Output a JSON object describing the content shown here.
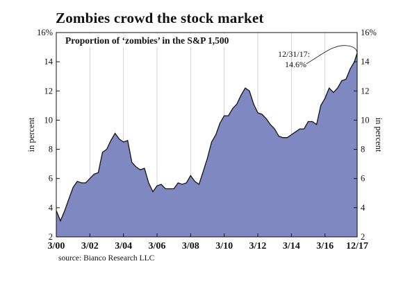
{
  "chart_data": {
    "type": "area",
    "title": "Zombies crowd the stock market",
    "subtitle": "Proportion of ‘zombies’ in the S&P 1,500",
    "ylabel": "in percent",
    "ylabel_right": "in percent",
    "ylim": [
      2,
      16
    ],
    "yticks": [
      "2",
      "4",
      "6",
      "8",
      "10",
      "12",
      "14",
      "16%"
    ],
    "xlim": [
      2000.0,
      2017.917
    ],
    "xticks": [
      {
        "value": 2000.0,
        "label": "3/00"
      },
      {
        "value": 2002.0,
        "label": "3/02"
      },
      {
        "value": 2004.0,
        "label": "3/04"
      },
      {
        "value": 2006.0,
        "label": "3/06"
      },
      {
        "value": 2008.0,
        "label": "3/08"
      },
      {
        "value": 2010.0,
        "label": "3/10"
      },
      {
        "value": 2012.0,
        "label": "3/12"
      },
      {
        "value": 2014.0,
        "label": "3/14"
      },
      {
        "value": 2016.0,
        "label": "3/16"
      },
      {
        "value": 2017.917,
        "label": "12/17"
      }
    ],
    "grid": "vertical",
    "fill_color": "#8088c2",
    "line_color": "#111111",
    "series": [
      {
        "x": [
          2000.0,
          2000.25,
          2000.5,
          2000.75,
          2001.0,
          2001.25,
          2001.5,
          2001.75,
          2002.0,
          2002.25,
          2002.5,
          2002.75,
          2003.0,
          2003.25,
          2003.5,
          2003.75,
          2004.0,
          2004.25,
          2004.5,
          2004.75,
          2005.0,
          2005.25,
          2005.5,
          2005.75,
          2006.0,
          2006.25,
          2006.5,
          2006.75,
          2007.0,
          2007.25,
          2007.5,
          2007.75,
          2008.0,
          2008.25,
          2008.5,
          2008.75,
          2009.0,
          2009.25,
          2009.5,
          2009.75,
          2010.0,
          2010.25,
          2010.5,
          2010.75,
          2011.0,
          2011.25,
          2011.5,
          2011.75,
          2012.0,
          2012.25,
          2012.5,
          2012.75,
          2013.0,
          2013.25,
          2013.5,
          2013.75,
          2014.0,
          2014.25,
          2014.5,
          2014.75,
          2015.0,
          2015.25,
          2015.5,
          2015.75,
          2016.0,
          2016.25,
          2016.5,
          2016.75,
          2017.0,
          2017.25,
          2017.5,
          2017.75,
          2017.917
        ],
        "values": [
          3.8,
          3.1,
          3.8,
          4.6,
          5.4,
          5.8,
          5.7,
          5.7,
          6.0,
          6.3,
          6.4,
          7.8,
          8.0,
          8.6,
          9.1,
          8.7,
          8.5,
          8.6,
          7.1,
          6.8,
          6.6,
          6.7,
          5.7,
          5.1,
          5.5,
          5.6,
          5.3,
          5.3,
          5.3,
          5.7,
          5.6,
          5.7,
          6.2,
          5.8,
          5.6,
          6.5,
          7.4,
          8.5,
          9.0,
          9.8,
          10.3,
          10.3,
          10.8,
          11.1,
          11.7,
          12.2,
          12.0,
          11.1,
          10.5,
          10.4,
          10.1,
          9.7,
          9.4,
          8.9,
          8.8,
          8.8,
          9.0,
          9.2,
          9.4,
          9.4,
          9.9,
          9.9,
          9.7,
          11.0,
          11.5,
          12.2,
          11.9,
          12.2,
          12.7,
          12.8,
          13.5,
          14.0,
          14.6
        ]
      }
    ],
    "annotation": {
      "line1": "12/31/17:",
      "line2": "14.6%",
      "x": 2017.917,
      "y": 14.6
    }
  },
  "source": "source: Bianco Research LLC"
}
